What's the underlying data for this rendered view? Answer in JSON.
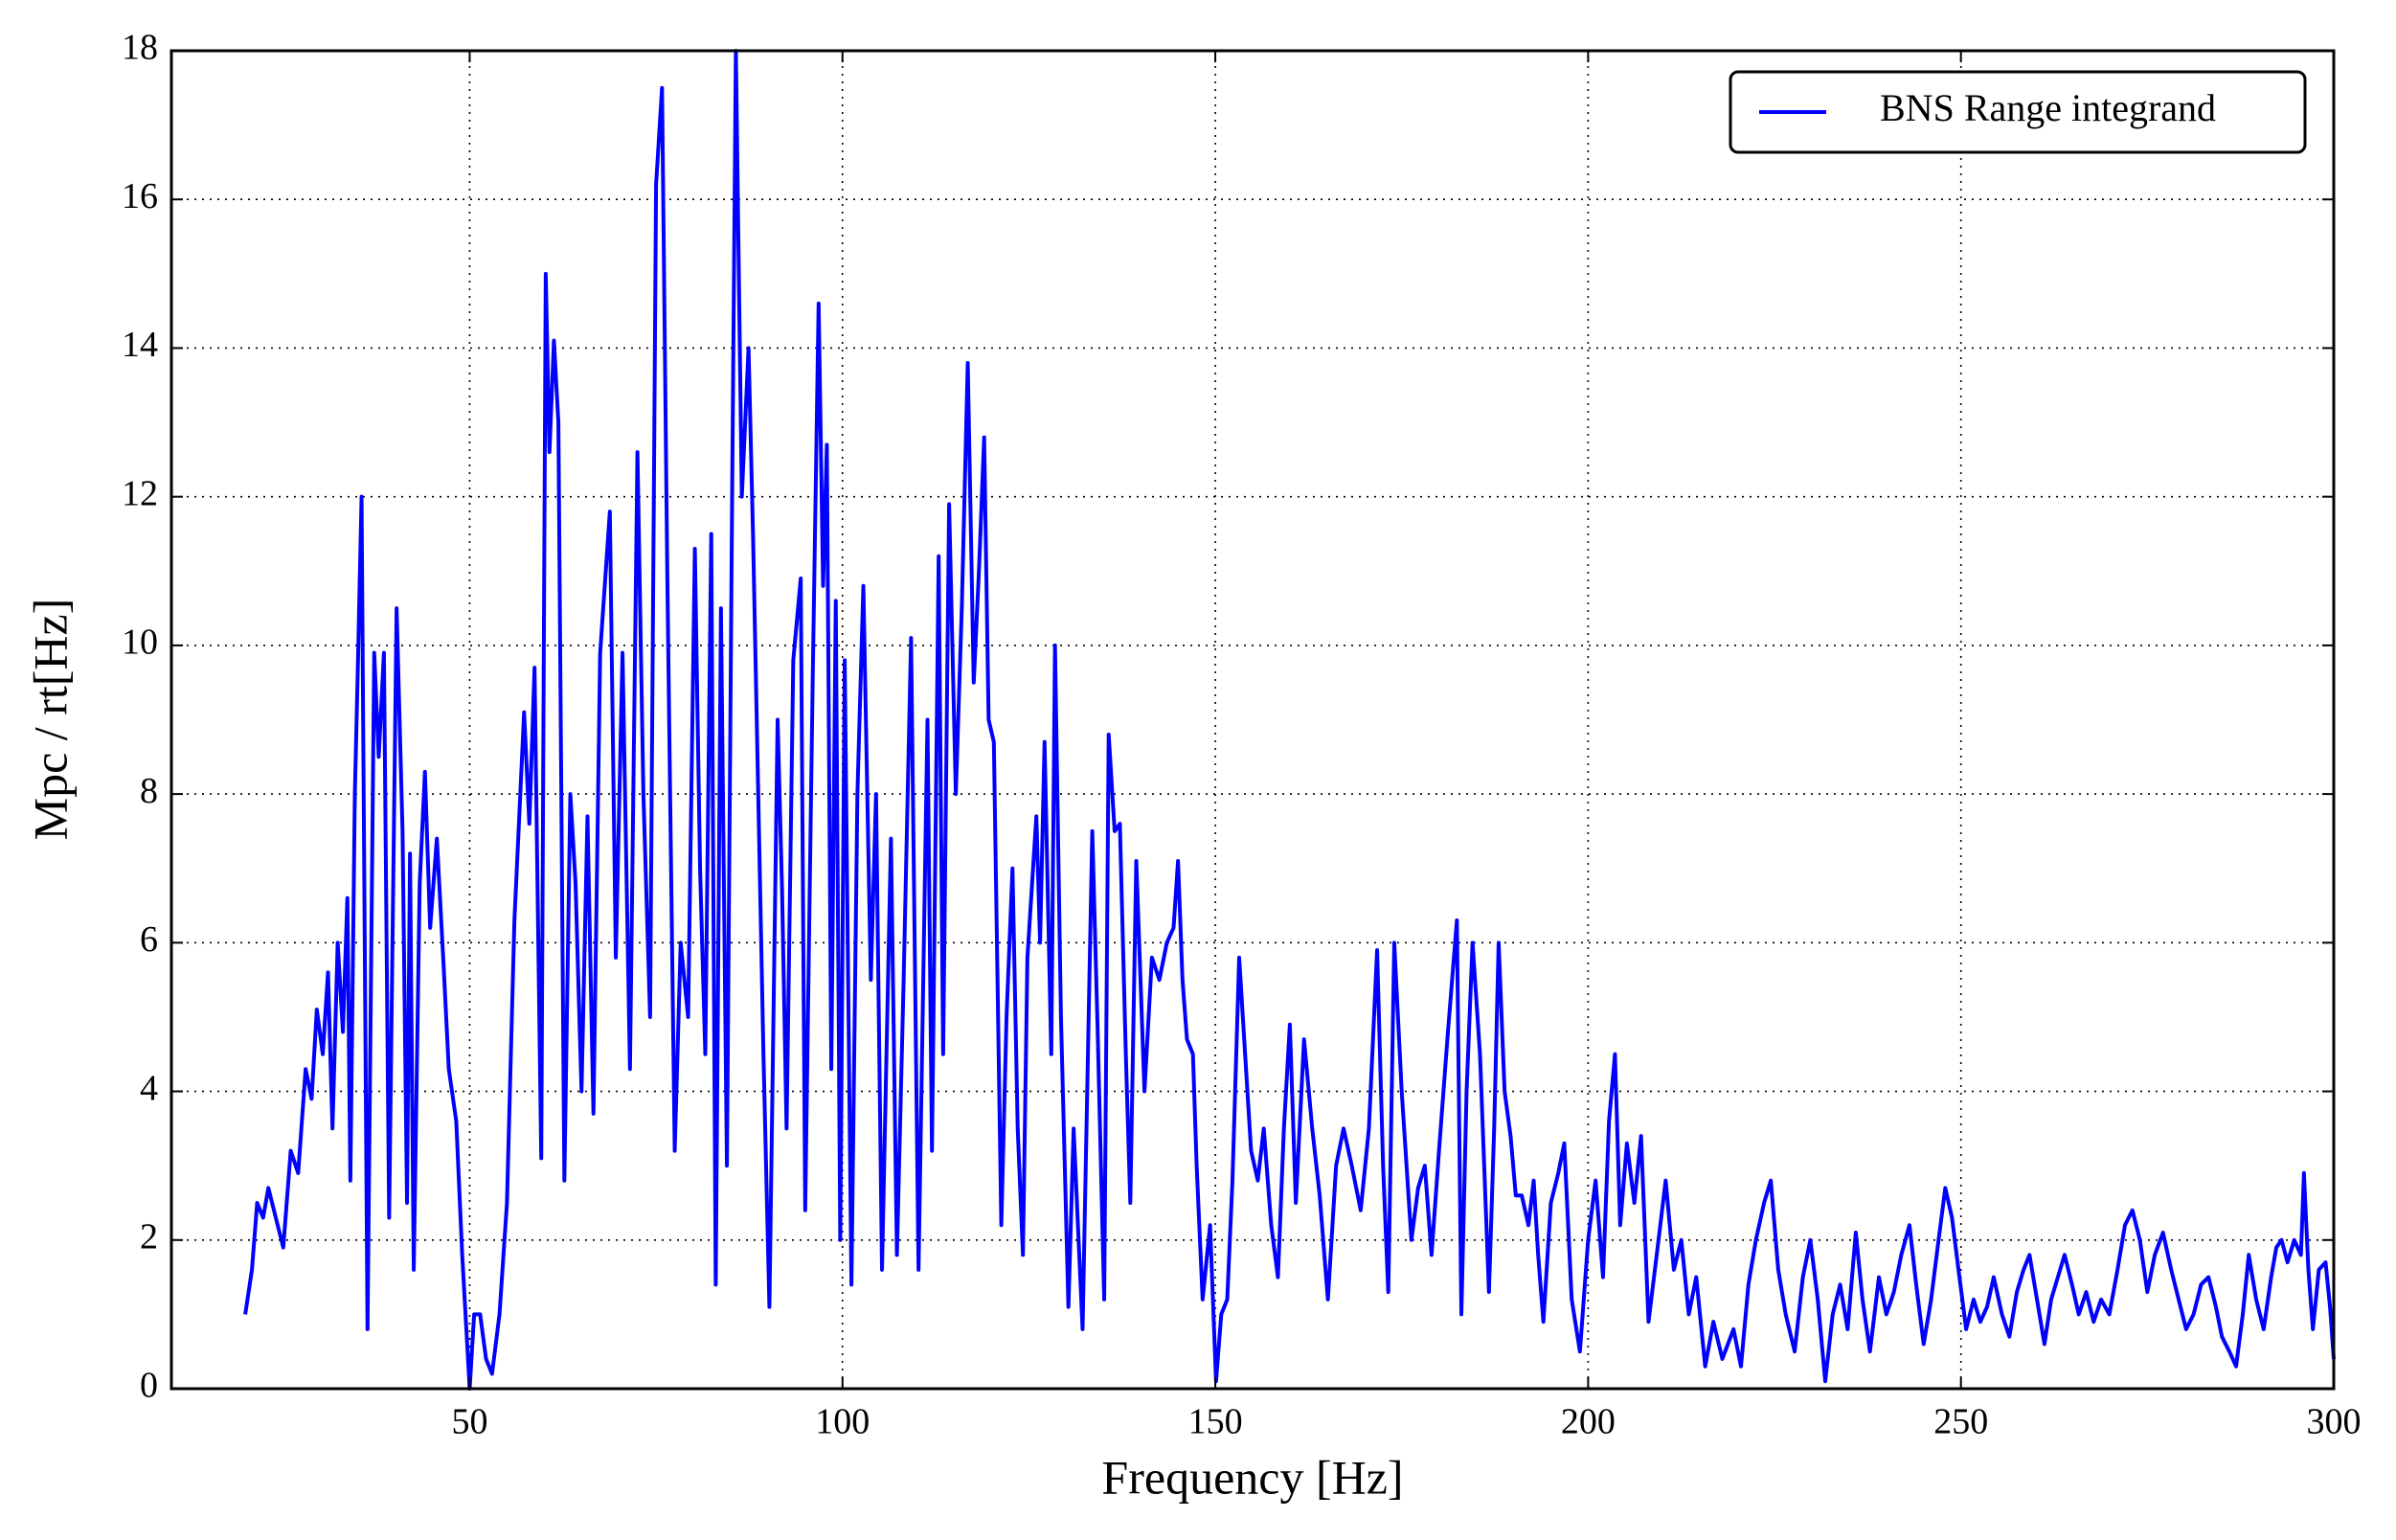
{
  "chart_data": {
    "type": "line",
    "xlabel": "Frequency [Hz]",
    "ylabel": "Mpc / rt[Hz]",
    "xlim": [
      10,
      300
    ],
    "ylim": [
      0,
      18
    ],
    "xticks": [
      50,
      100,
      150,
      200,
      250,
      300
    ],
    "yticks": [
      0,
      2,
      4,
      6,
      8,
      10,
      12,
      14,
      16,
      18
    ],
    "grid": true,
    "legend": "upper right",
    "x": [
      19.9,
      20.8,
      21.5,
      22.3,
      23.0,
      24.0,
      25.0,
      26.0,
      27.0,
      28.0,
      28.8,
      29.5,
      30.3,
      31.0,
      31.6,
      32.3,
      33.0,
      33.6,
      34.0,
      34.6,
      35.0,
      35.5,
      36.3,
      37.2,
      37.8,
      38.5,
      39.2,
      40.2,
      41.0,
      41.6,
      42.0,
      42.5,
      43.3,
      44.0,
      44.7,
      45.6,
      46.5,
      47.2,
      48.2,
      49.0,
      50.0,
      50.6,
      51.4,
      52.2,
      53.0,
      54.0,
      55.0,
      56.0,
      57.3,
      58.0,
      58.7,
      59.6,
      60.2,
      60.7,
      61.3,
      61.9,
      62.7,
      63.5,
      64.2,
      65.0,
      65.8,
      66.6,
      67.5,
      68.8,
      69.6,
      70.5,
      71.5,
      72.5,
      73.3,
      74.2,
      75.0,
      75.8,
      76.5,
      77.5,
      78.3,
      79.3,
      80.2,
      80.9,
      81.6,
      82.4,
      83.0,
      83.7,
      84.5,
      85.2,
      85.7,
      86.5,
      87.4,
      88.0,
      88.6,
      89.4,
      90.2,
      91.3,
      91.9,
      92.5,
      93.4,
      94.4,
      95.0,
      96.0,
      96.8,
      97.4,
      97.9,
      98.5,
      99.1,
      99.7,
      100.3,
      101.2,
      102.0,
      102.8,
      103.8,
      104.5,
      105.3,
      106.5,
      107.3,
      108.2,
      109.2,
      110.2,
      111.4,
      112.0,
      112.9,
      113.5,
      114.3,
      115.2,
      116.0,
      116.8,
      117.6,
      118.3,
      119.0,
      119.6,
      120.3,
      121.3,
      122.0,
      122.8,
      123.5,
      124.2,
      124.8,
      126.0,
      126.5,
      127.1,
      128.0,
      128.5,
      129.3,
      130.3,
      131.0,
      132.2,
      133.5,
      134.2,
      135.1,
      135.7,
      136.5,
      137.2,
      138.0,
      138.6,
      139.4,
      140.5,
      141.5,
      142.5,
      143.5,
      144.4,
      145.0,
      145.6,
      146.2,
      147.0,
      147.5,
      148.3,
      149.3,
      150.1,
      150.8,
      151.6,
      152.3,
      153.2,
      154.0,
      154.8,
      155.7,
      156.5,
      157.5,
      158.4,
      159.2,
      160.0,
      160.8,
      161.9,
      163.0,
      164.0,
      165.1,
      166.2,
      167.2,
      168.3,
      169.5,
      170.6,
      171.7,
      172.5,
      173.2,
      174.0,
      175.0,
      176.3,
      177.2,
      178.1,
      179.0,
      180.0,
      181.2,
      182.4,
      183.0,
      183.7,
      184.5,
      185.5,
      186.7,
      187.4,
      188.0,
      188.8,
      189.6,
      190.3,
      191.1,
      192.0,
      192.7,
      193.3,
      194.0,
      195.0,
      196.0,
      196.8,
      197.8,
      198.9,
      200.0,
      201.0,
      202.0,
      202.8,
      203.6,
      204.3,
      205.2,
      206.2,
      207.1,
      208.1,
      209.2,
      210.4,
      211.5,
      212.5,
      213.5,
      214.5,
      215.7,
      216.8,
      218.0,
      219.5,
      220.5,
      221.5,
      222.5,
      223.6,
      224.5,
      225.5,
      226.5,
      227.7,
      228.8,
      229.8,
      230.8,
      231.8,
      232.8,
      233.8,
      234.8,
      235.9,
      236.8,
      237.8,
      239.0,
      240.0,
      241.0,
      242.0,
      243.1,
      244.0,
      245.0,
      246.0,
      247.0,
      247.9,
      248.8,
      249.8,
      250.7,
      251.7,
      252.6,
      253.5,
      254.4,
      255.5,
      256.5,
      257.5,
      258.4,
      259.2,
      260.2,
      261.2,
      262.1,
      263.0,
      263.9,
      264.9,
      265.8,
      266.8,
      267.8,
      268.8,
      269.9,
      271.0,
      272.0,
      273.0,
      274.0,
      275.0,
      276.0,
      277.1,
      278.2,
      279.2,
      280.2,
      281.2,
      282.2,
      283.2,
      284.2,
      285.0,
      286.0,
      286.9,
      287.8,
      288.6,
      289.6,
      290.6,
      291.6,
      292.3,
      293.0,
      293.8,
      294.7,
      295.6,
      296.0,
      296.6,
      297.2,
      298.0,
      298.9,
      299.5,
      300.0
    ],
    "series": [
      {
        "name": "BNS Range integrand",
        "color": "#0000ff",
        "values": [
          1.0,
          1.6,
          2.5,
          2.3,
          2.7,
          2.3,
          1.9,
          3.2,
          2.9,
          4.3,
          3.9,
          5.1,
          4.5,
          5.6,
          3.5,
          6.0,
          4.8,
          6.6,
          2.8,
          8.0,
          9.7,
          12.0,
          0.8,
          9.9,
          8.5,
          9.9,
          2.3,
          10.5,
          7.5,
          2.5,
          7.2,
          1.6,
          6.8,
          8.3,
          6.2,
          7.4,
          5.7,
          4.3,
          3.6,
          1.8,
          0.0,
          1.0,
          1.0,
          0.4,
          0.2,
          1.0,
          2.5,
          6.3,
          9.1,
          7.6,
          9.7,
          3.1,
          15.0,
          12.6,
          14.1,
          13.0,
          2.8,
          8.0,
          6.8,
          4.0,
          7.7,
          3.7,
          9.9,
          11.8,
          5.8,
          9.9,
          4.3,
          12.6,
          8.0,
          5.0,
          16.2,
          17.5,
          11.0,
          3.2,
          6.0,
          5.0,
          11.3,
          7.0,
          4.5,
          11.5,
          1.4,
          10.5,
          3.0,
          12.0,
          18.0,
          12.0,
          14.0,
          11.5,
          8.5,
          4.5,
          1.1,
          9.0,
          6.7,
          3.5,
          9.8,
          10.9,
          2.4,
          9.5,
          14.6,
          10.8,
          12.7,
          4.3,
          10.6,
          2.0,
          9.8,
          1.4,
          8.0,
          10.8,
          5.5,
          8.0,
          1.6,
          7.4,
          1.8,
          5.5,
          10.1,
          1.6,
          9.0,
          3.2,
          11.2,
          4.5,
          11.9,
          8.0,
          10.5,
          13.8,
          9.5,
          11.0,
          12.8,
          9.0,
          8.7,
          2.2,
          5.0,
          7.0,
          3.5,
          1.8,
          5.8,
          7.7,
          6.0,
          8.7,
          4.5,
          10.0,
          5.0,
          1.1,
          3.5,
          0.8,
          7.5,
          4.9,
          1.2,
          8.8,
          7.5,
          7.6,
          4.5,
          2.5,
          7.1,
          4.0,
          5.8,
          5.5,
          6.0,
          6.2,
          7.1,
          5.5,
          4.7,
          4.5,
          3.0,
          1.2,
          2.2,
          0.1,
          1.0,
          1.2,
          2.8,
          5.8,
          4.5,
          3.2,
          2.8,
          3.5,
          2.2,
          1.5,
          3.5,
          4.9,
          2.5,
          4.7,
          3.5,
          2.6,
          1.2,
          3.0,
          3.5,
          3.0,
          2.4,
          3.5,
          5.9,
          3.0,
          1.3,
          6.0,
          4.0,
          2.0,
          2.7,
          3.0,
          1.8,
          3.2,
          4.8,
          6.3,
          1.0,
          4.0,
          6.0,
          4.5,
          1.3,
          3.5,
          6.0,
          4.0,
          3.4,
          2.6,
          2.6,
          2.2,
          2.8,
          1.8,
          0.9,
          2.5,
          2.9,
          3.3,
          1.2,
          0.5,
          2.0,
          2.8,
          1.5,
          3.6,
          4.5,
          2.2,
          3.3,
          2.5,
          3.4,
          0.9,
          1.8,
          2.8,
          1.6,
          2.0,
          1.0,
          1.5,
          0.3,
          0.9,
          0.4,
          0.8,
          0.3,
          1.4,
          2.0,
          2.5,
          2.8,
          1.6,
          1.0,
          0.5,
          1.5,
          2.0,
          1.2,
          0.1,
          1.0,
          1.4,
          0.8,
          2.1,
          1.2,
          0.5,
          1.5,
          1.0,
          1.3,
          1.8,
          2.2,
          1.4,
          0.6,
          1.2,
          2.0,
          2.7,
          2.3,
          1.5,
          0.8,
          1.2,
          0.9,
          1.1,
          1.5,
          1.0,
          0.7,
          1.3,
          1.6,
          1.8,
          1.2,
          0.6,
          1.2,
          1.5,
          1.8,
          1.4,
          1.0,
          1.3,
          0.9,
          1.2,
          1.0,
          1.6,
          2.2,
          2.4,
          2.0,
          1.3,
          1.8,
          2.1,
          1.6,
          1.2,
          0.8,
          1.0,
          1.4,
          1.5,
          1.1,
          0.7,
          0.5,
          0.3,
          1.0,
          1.8,
          1.2,
          0.8,
          1.5,
          1.9,
          2.0,
          1.7,
          2.0,
          1.8,
          2.9,
          1.6,
          0.8,
          1.6,
          1.7,
          1.1,
          0.4
        ]
      }
    ]
  }
}
